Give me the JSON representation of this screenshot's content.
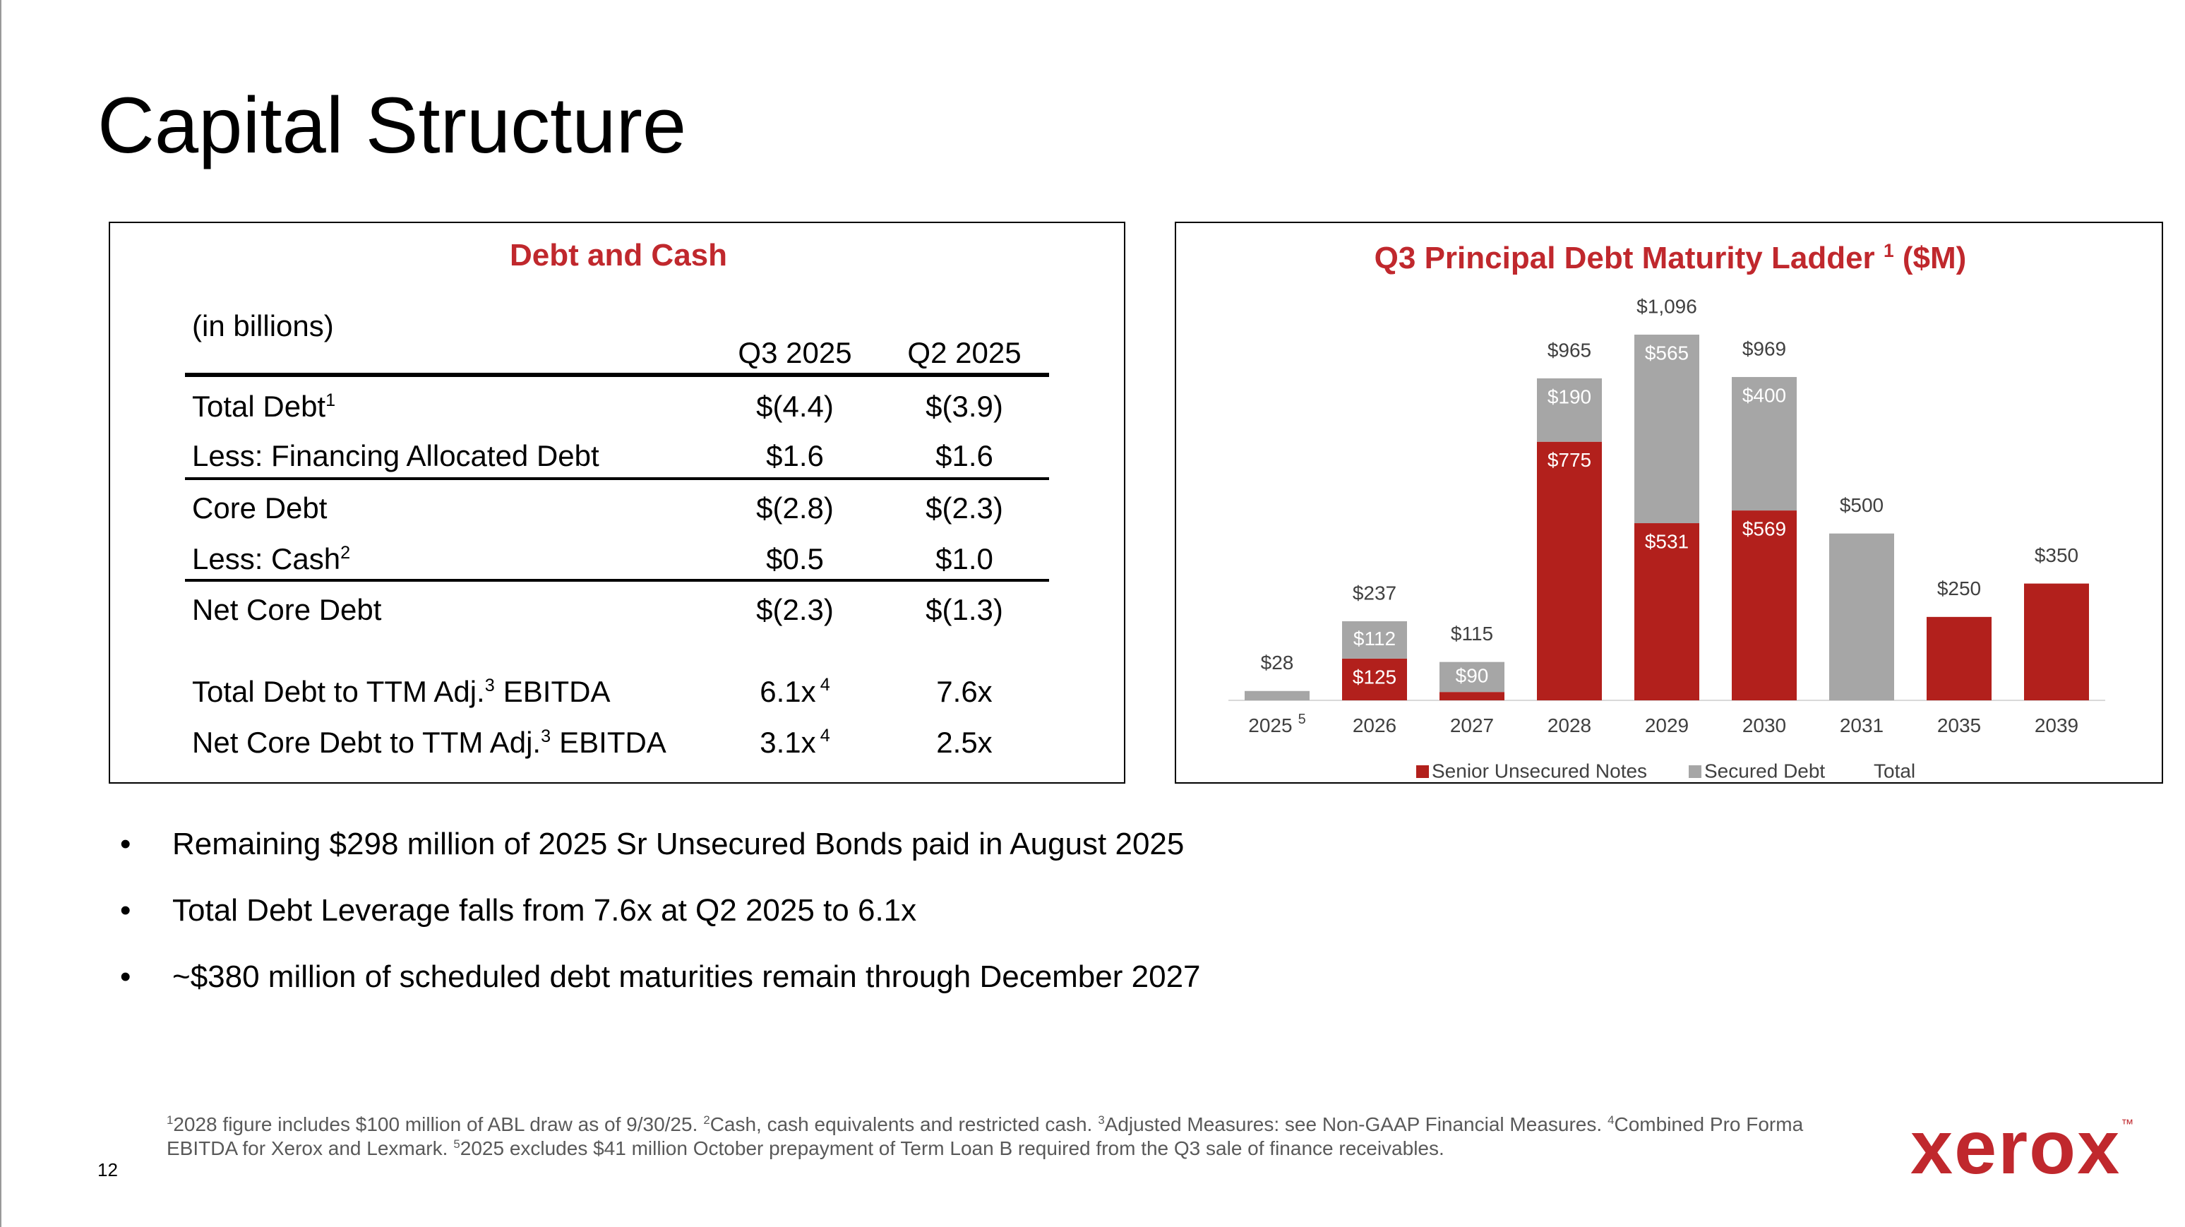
{
  "header": {
    "title": "Capital Structure"
  },
  "table": {
    "title": "Debt and Cash",
    "unit": "(in billions)",
    "columns": [
      "Q3 2025",
      "Q2 2025"
    ],
    "rows": [
      {
        "label": "Total Debt",
        "sup": "1",
        "values": [
          "$(4.4)",
          "$(3.9)"
        ]
      },
      {
        "label": "Less: Financing Allocated Debt",
        "values": [
          "$1.6",
          "$1.6"
        ]
      },
      {
        "label": "Core Debt",
        "values": [
          "$(2.8)",
          "$(2.3)"
        ]
      },
      {
        "label": "Less: Cash",
        "sup": "2",
        "values": [
          "$0.5",
          "$1.0"
        ]
      },
      {
        "label": "Net Core Debt",
        "values": [
          "$(2.3)",
          "$(1.3)"
        ]
      },
      {
        "label": "Total Debt to TTM Adj.",
        "sup": "3",
        "label_end": "EBITDA",
        "values": [
          "6.1x",
          "7.6x"
        ],
        "value_sup": "4"
      },
      {
        "label": "Net Core Debt to TTM Adj.",
        "sup": "3",
        "label_end": "EBITDA",
        "values": [
          "3.1x",
          "2.5x"
        ],
        "value_sup": "4"
      }
    ]
  },
  "chart_data": {
    "type": "stacked_bar",
    "title": "Q3 Principal Debt Maturity Ladder",
    "title_sup": "1",
    "title_end": "($M)",
    "categories": [
      "2025",
      "2026",
      "2027",
      "2028",
      "2029",
      "2030",
      "2031",
      "2035",
      "2039"
    ],
    "category_sup": [
      "5",
      null,
      null,
      null,
      null,
      null,
      null,
      null,
      null
    ],
    "series": [
      {
        "name": "Senior Unsecured Notes",
        "color": "#b2201c",
        "values": [
          null,
          125,
          25,
          775,
          531,
          569,
          null,
          250,
          350
        ],
        "value_labels": [
          null,
          "$125",
          null,
          "$775",
          "$531",
          "$569",
          null,
          null,
          null
        ]
      },
      {
        "name": "Secured Debt",
        "color": "#a6a6a6",
        "values": [
          28,
          112,
          90,
          190,
          565,
          400,
          500,
          null,
          null
        ],
        "value_labels": [
          null,
          "$112",
          "$90",
          "$190",
          "$565",
          "$400",
          null,
          null,
          null
        ]
      },
      {
        "name": "Total",
        "values": [
          28,
          237,
          115,
          965,
          1096,
          969,
          500,
          250,
          350
        ],
        "value_labels": [
          "$28",
          "$237",
          "$115",
          "$965",
          "$1,096",
          "$969",
          "$500",
          "$250",
          "$350"
        ]
      }
    ]
  },
  "bullets": [
    "Remaining $298 million of 2025 Sr Unsecured Bonds paid in August 2025",
    "Total Debt Leverage falls from 7.6x at Q2 2025 to 6.1x",
    "~$380 million of scheduled debt maturities remain through December 2027"
  ],
  "footnotes": [
    {
      "sup": "1",
      "text": "2028 figure includes $100 million of ABL draw as of 9/30/25."
    },
    {
      "sup": "2",
      "text": "Cash, cash equivalents and restricted cash."
    },
    {
      "sup": "3",
      "text": "Adjusted Measures: see Non-GAAP Financial Measures."
    },
    {
      "sup": "4",
      "text": "Combined Pro Forma EBITDA for Xerox and Lexmark."
    },
    {
      "sup": "5",
      "text": "2025 excludes $41 million October prepayment of Term Loan B required from the Q3 sale of finance receivables."
    }
  ],
  "page_number": "12",
  "logo": {
    "text": "xerox",
    "mark": "™"
  }
}
